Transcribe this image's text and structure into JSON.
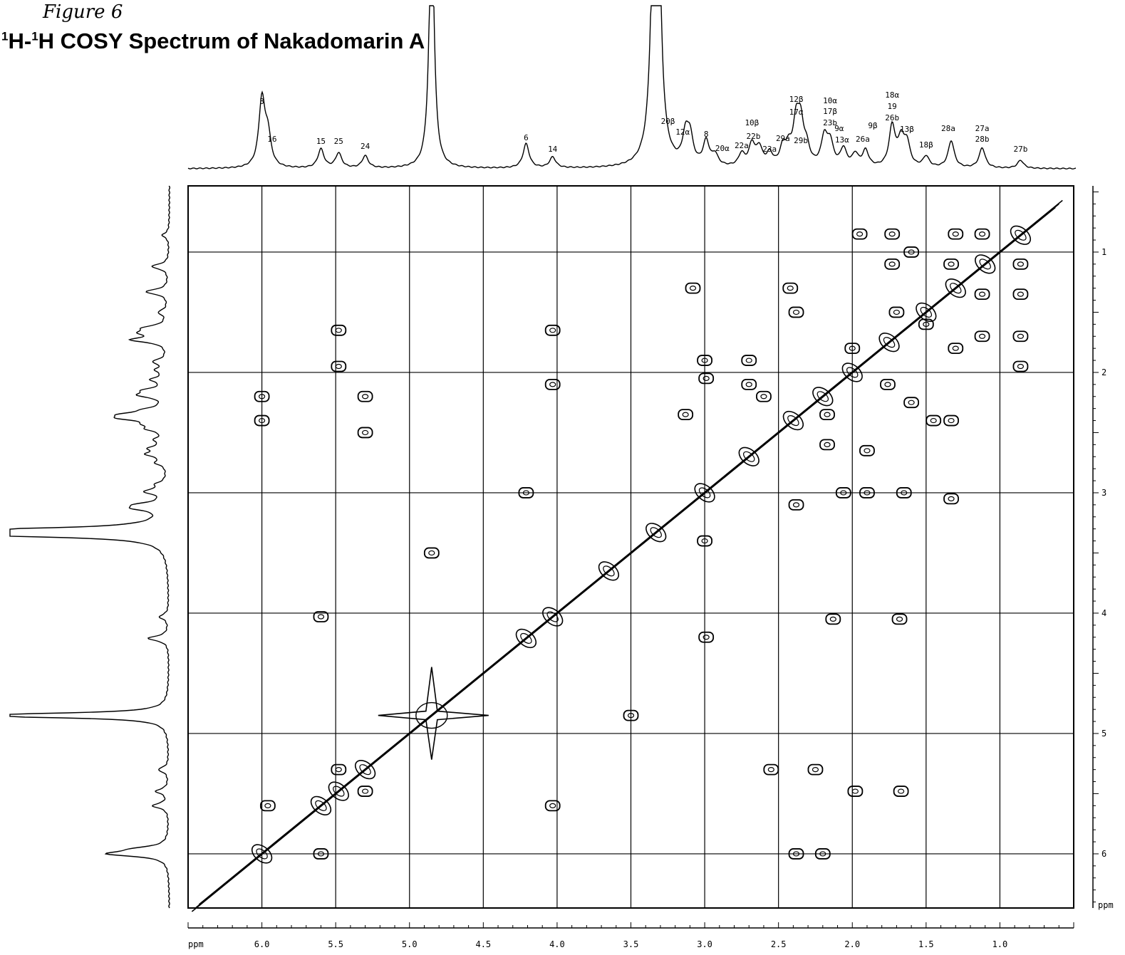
{
  "figure_note": "Figure 6",
  "title": {
    "sup1": "1",
    "part1": "H-",
    "sup2": "1",
    "part2": "H COSY Spectrum of Nakadomarin A"
  },
  "chart_data": {
    "type": "heatmap",
    "kind": "2D COSY NMR contour plot",
    "xlabel": "ppm",
    "ylabel": "ppm",
    "xlim": [
      6.5,
      0.5
    ],
    "ylim": [
      0.45,
      6.45
    ],
    "x_ticks": [
      "6.0",
      "5.5",
      "5.0",
      "4.5",
      "4.0",
      "3.5",
      "3.0",
      "2.5",
      "2.0",
      "1.5",
      "1.0"
    ],
    "x_tick_values": [
      6.0,
      5.5,
      5.0,
      4.5,
      4.0,
      3.5,
      3.0,
      2.5,
      2.0,
      1.5,
      1.0
    ],
    "y_ticks": [
      "1",
      "2",
      "3",
      "4",
      "5",
      "6"
    ],
    "y_tick_values": [
      1,
      2,
      3,
      4,
      5,
      6
    ],
    "grid": true,
    "peak_labels": [
      {
        "text": "3",
        "ppm": 6.0
      },
      {
        "text": "16",
        "ppm": 5.96
      },
      {
        "text": "15",
        "ppm": 5.6
      },
      {
        "text": "25",
        "ppm": 5.48
      },
      {
        "text": "24",
        "ppm": 5.3
      },
      {
        "text": "6",
        "ppm": 4.21
      },
      {
        "text": "14",
        "ppm": 4.03
      },
      {
        "text": "20β",
        "ppm": 3.22
      },
      {
        "text": "12α",
        "ppm": 3.13
      },
      {
        "text": "8",
        "ppm": 2.99
      },
      {
        "text": "20α",
        "ppm": 2.89
      },
      {
        "text": "22a",
        "ppm": 2.75
      },
      {
        "text": "10β",
        "ppm": 2.68
      },
      {
        "text": "22b",
        "ppm": 2.67
      },
      {
        "text": "23a",
        "ppm": 2.56
      },
      {
        "text": "29a",
        "ppm": 2.47
      },
      {
        "text": "12β",
        "ppm": 2.38
      },
      {
        "text": "17α",
        "ppm": 2.38
      },
      {
        "text": "29b",
        "ppm": 2.31
      },
      {
        "text": "10α",
        "ppm": 2.17
      },
      {
        "text": "17β",
        "ppm": 2.17
      },
      {
        "text": "23b",
        "ppm": 2.17
      },
      {
        "text": "9α",
        "ppm": 2.06
      },
      {
        "text": "13α",
        "ppm": 2.06
      },
      {
        "text": "9β",
        "ppm": 1.9
      },
      {
        "text": "26a",
        "ppm": 1.91
      },
      {
        "text": "18α",
        "ppm": 1.73
      },
      {
        "text": "19",
        "ppm": 1.73
      },
      {
        "text": "26b",
        "ppm": 1.73
      },
      {
        "text": "13β",
        "ppm": 1.63
      },
      {
        "text": "18β",
        "ppm": 1.5
      },
      {
        "text": "28a",
        "ppm": 1.35
      },
      {
        "text": "27a",
        "ppm": 1.12
      },
      {
        "text": "28b",
        "ppm": 1.12
      },
      {
        "text": "27b",
        "ppm": 0.86
      }
    ],
    "spectrum_1d": [
      {
        "ppm": 6.0,
        "height": 100
      },
      {
        "ppm": 5.96,
        "height": 45
      },
      {
        "ppm": 5.6,
        "height": 28
      },
      {
        "ppm": 5.48,
        "height": 22
      },
      {
        "ppm": 5.3,
        "height": 18
      },
      {
        "ppm": 4.85,
        "height": 380
      },
      {
        "ppm": 4.21,
        "height": 36
      },
      {
        "ppm": 4.03,
        "height": 16
      },
      {
        "ppm": 3.33,
        "height": 1000
      },
      {
        "ppm": 3.13,
        "height": 40
      },
      {
        "ppm": 3.1,
        "height": 40
      },
      {
        "ppm": 2.99,
        "height": 36
      },
      {
        "ppm": 2.93,
        "height": 16
      },
      {
        "ppm": 2.75,
        "height": 18
      },
      {
        "ppm": 2.68,
        "height": 32
      },
      {
        "ppm": 2.63,
        "height": 26
      },
      {
        "ppm": 2.56,
        "height": 18
      },
      {
        "ppm": 2.47,
        "height": 26
      },
      {
        "ppm": 2.43,
        "height": 22
      },
      {
        "ppm": 2.38,
        "height": 60
      },
      {
        "ppm": 2.35,
        "height": 56
      },
      {
        "ppm": 2.31,
        "height": 24
      },
      {
        "ppm": 2.19,
        "height": 42
      },
      {
        "ppm": 2.15,
        "height": 34
      },
      {
        "ppm": 2.06,
        "height": 26
      },
      {
        "ppm": 1.98,
        "height": 18
      },
      {
        "ppm": 1.91,
        "height": 24
      },
      {
        "ppm": 1.73,
        "height": 60
      },
      {
        "ppm": 1.67,
        "height": 38
      },
      {
        "ppm": 1.63,
        "height": 34
      },
      {
        "ppm": 1.5,
        "height": 16
      },
      {
        "ppm": 1.33,
        "height": 40
      },
      {
        "ppm": 1.12,
        "height": 30
      },
      {
        "ppm": 0.86,
        "height": 12
      }
    ],
    "cross_peaks": [
      [
        6.0,
        2.2
      ],
      [
        6.0,
        2.4
      ],
      [
        5.96,
        5.6
      ],
      [
        5.6,
        4.03
      ],
      [
        5.6,
        6.0
      ],
      [
        5.48,
        1.65
      ],
      [
        5.48,
        1.95
      ],
      [
        5.3,
        2.2
      ],
      [
        5.3,
        2.5
      ],
      [
        5.3,
        5.48
      ],
      [
        5.48,
        5.3
      ],
      [
        4.85,
        3.5
      ],
      [
        4.21,
        3.0
      ],
      [
        4.03,
        1.65
      ],
      [
        4.03,
        2.1
      ],
      [
        4.03,
        5.6
      ],
      [
        3.5,
        4.85
      ],
      [
        3.13,
        2.35
      ],
      [
        3.08,
        1.3
      ],
      [
        3.0,
        1.9
      ],
      [
        3.0,
        3.4
      ],
      [
        2.99,
        2.05
      ],
      [
        2.99,
        4.2
      ],
      [
        2.7,
        2.1
      ],
      [
        2.7,
        1.9
      ],
      [
        2.6,
        2.2
      ],
      [
        2.55,
        5.3
      ],
      [
        2.42,
        1.3
      ],
      [
        2.38,
        1.5
      ],
      [
        2.38,
        6.0
      ],
      [
        2.38,
        3.1
      ],
      [
        2.25,
        5.3
      ],
      [
        2.2,
        6.0
      ],
      [
        2.17,
        2.35
      ],
      [
        2.17,
        2.6
      ],
      [
        2.13,
        4.05
      ],
      [
        2.06,
        3.0
      ],
      [
        2.0,
        1.8
      ],
      [
        1.98,
        5.48
      ],
      [
        1.95,
        0.85
      ],
      [
        1.9,
        2.65
      ],
      [
        1.9,
        3.0
      ],
      [
        1.76,
        2.1
      ],
      [
        1.73,
        0.85
      ],
      [
        1.73,
        1.1
      ],
      [
        1.7,
        1.5
      ],
      [
        1.68,
        4.05
      ],
      [
        1.67,
        5.48
      ],
      [
        1.65,
        3.0
      ],
      [
        1.6,
        1.0
      ],
      [
        1.6,
        2.25
      ],
      [
        1.5,
        1.6
      ],
      [
        1.45,
        2.4
      ],
      [
        1.33,
        2.4
      ],
      [
        1.33,
        3.05
      ],
      [
        1.33,
        1.1
      ],
      [
        1.3,
        0.85
      ],
      [
        1.3,
        1.8
      ],
      [
        1.12,
        0.85
      ],
      [
        1.12,
        1.35
      ],
      [
        1.12,
        1.7
      ],
      [
        0.86,
        1.1
      ],
      [
        0.86,
        1.35
      ],
      [
        0.86,
        1.7
      ],
      [
        0.86,
        1.95
      ]
    ],
    "diagonal_peaks": [
      6.0,
      5.6,
      5.48,
      5.3,
      4.85,
      4.21,
      4.03,
      3.65,
      3.33,
      3.0,
      2.7,
      2.4,
      2.2,
      2.0,
      1.75,
      1.5,
      1.3,
      1.1,
      0.86
    ]
  }
}
